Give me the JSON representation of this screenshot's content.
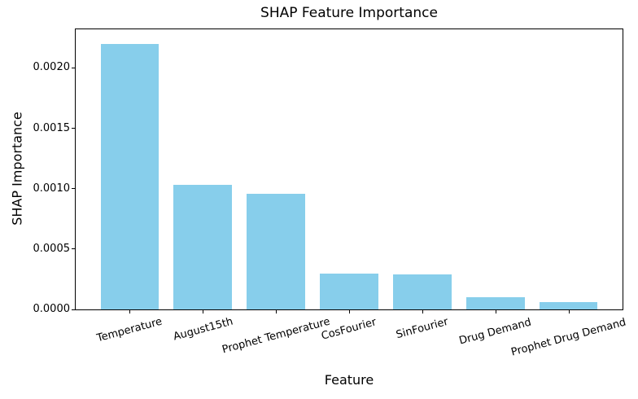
{
  "chart_data": {
    "type": "bar",
    "title": "SHAP Feature Importance",
    "xlabel": "Feature",
    "ylabel": "SHAP Importance",
    "categories": [
      "Temperature",
      "August15th",
      "Prophet Temperature",
      "CosFourier",
      "SinFourier",
      "Drug Demand",
      "Prophet Drug Demand"
    ],
    "values": [
      0.0022,
      0.00103,
      0.00096,
      0.0003,
      0.00029,
      0.0001,
      6.3e-05
    ],
    "bar_color": "#87CEEB",
    "ylim": [
      0,
      0.00232
    ],
    "yticks": [
      0,
      0.0005,
      0.001,
      0.0015,
      0.002
    ],
    "ytick_labels": [
      "0.0000",
      "0.0005",
      "0.0010",
      "0.0015",
      "0.0020"
    ],
    "xtick_rotation_deg": 15,
    "grid": false,
    "legend": "none"
  }
}
